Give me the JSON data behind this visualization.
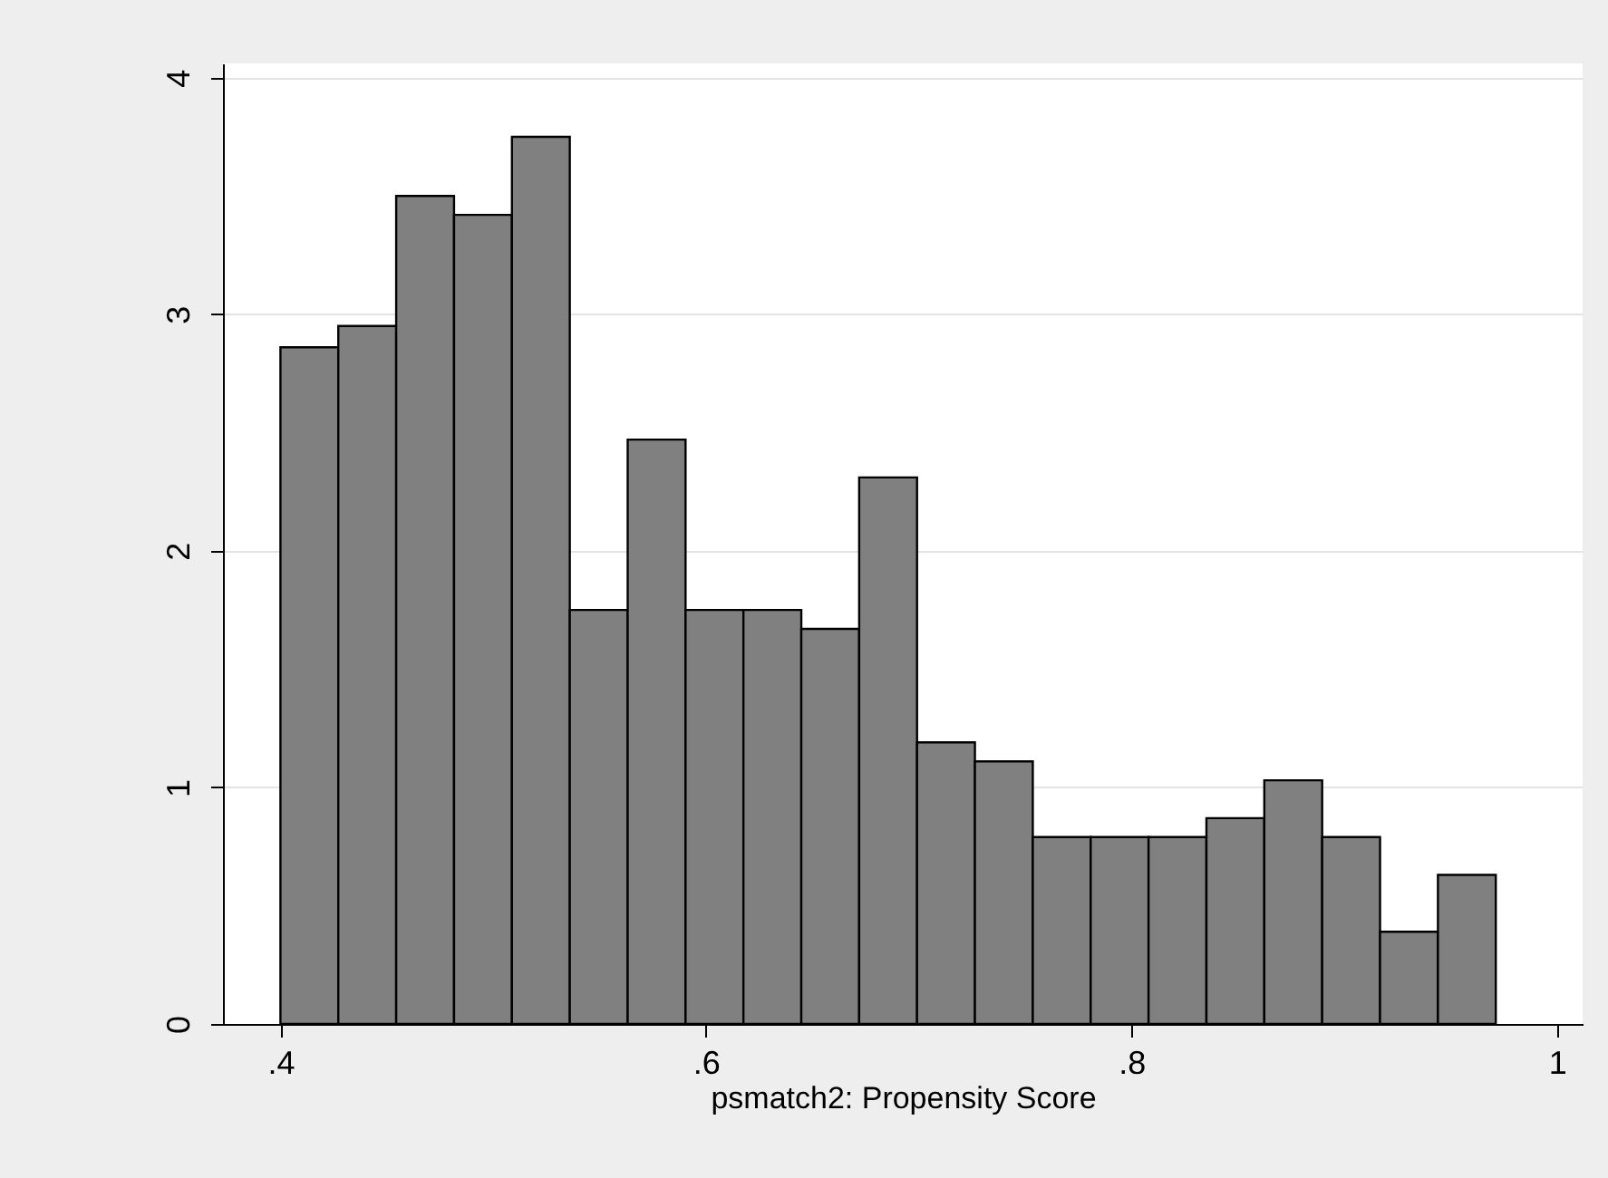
{
  "chart_data": {
    "type": "histogram",
    "xlabel": "psmatch2: Propensity Score",
    "bins": [
      0.4,
      0.4272,
      0.4544,
      0.4816,
      0.5088,
      0.536,
      0.5632,
      0.5904,
      0.6176,
      0.6448,
      0.672,
      0.6992,
      0.7264,
      0.7536,
      0.7808,
      0.808,
      0.8352,
      0.8624,
      0.8896,
      0.9168,
      0.944,
      0.9712
    ],
    "values": [
      2.86,
      2.95,
      3.5,
      3.42,
      3.75,
      1.75,
      2.47,
      1.75,
      1.75,
      1.67,
      2.31,
      1.19,
      1.11,
      0.79,
      0.79,
      0.79,
      0.87,
      1.03,
      0.79,
      0.39,
      0.63
    ],
    "color": "#808080",
    "xlim": [
      0.373,
      1.012
    ],
    "xticks": [
      {
        "value": 0.4,
        "label": ".4"
      },
      {
        "value": 0.6,
        "label": ".6"
      },
      {
        "value": 0.8,
        "label": ".8"
      },
      {
        "value": 1,
        "label": "1"
      }
    ],
    "ylim": [
      0,
      4.06
    ],
    "yticks": [
      0,
      1,
      2,
      3,
      4
    ],
    "grid": "y"
  }
}
